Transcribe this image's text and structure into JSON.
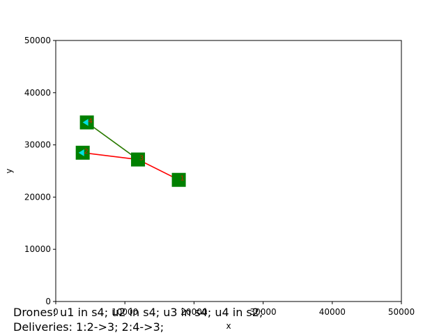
{
  "chart_data": {
    "type": "scatter",
    "xlabel": "x",
    "ylabel": "y",
    "xlim": [
      0,
      50000
    ],
    "ylim": [
      0,
      50000
    ],
    "x_ticks": [
      "0",
      "10000",
      "20000",
      "30000",
      "40000",
      "50000"
    ],
    "y_ticks": [
      "0",
      "10000",
      "20000",
      "30000",
      "40000",
      "50000"
    ],
    "grid": false,
    "colors": {
      "station": "#008000",
      "route_red": "#ff0000",
      "route_green": "#2a7a00",
      "drone": "#00e0e0",
      "marker_text": "#cc2200"
    },
    "stations": [
      {
        "x": 4500,
        "y": 34300,
        "label": "4"
      },
      {
        "x": 3900,
        "y": 28500,
        "label": "2"
      },
      {
        "x": 11900,
        "y": 27200,
        "label": "3"
      },
      {
        "x": 17800,
        "y": 23300,
        "label": "1"
      }
    ],
    "routes": [
      {
        "color": "red",
        "points": [
          [
            3900,
            28500
          ],
          [
            11900,
            27200
          ],
          [
            17800,
            23300
          ]
        ]
      },
      {
        "color": "green",
        "points": [
          [
            4500,
            34300
          ],
          [
            11900,
            27200
          ]
        ]
      }
    ],
    "drones": [
      {
        "x": 4500,
        "y": 34300
      },
      {
        "x": 3900,
        "y": 28500
      }
    ]
  },
  "caption": {
    "drones": "Drones: u1 in s4; u2 in s4; u3 in s4; u4 in s2;",
    "deliveries": "Deliveries: 1:2->3; 2:4->3;"
  }
}
